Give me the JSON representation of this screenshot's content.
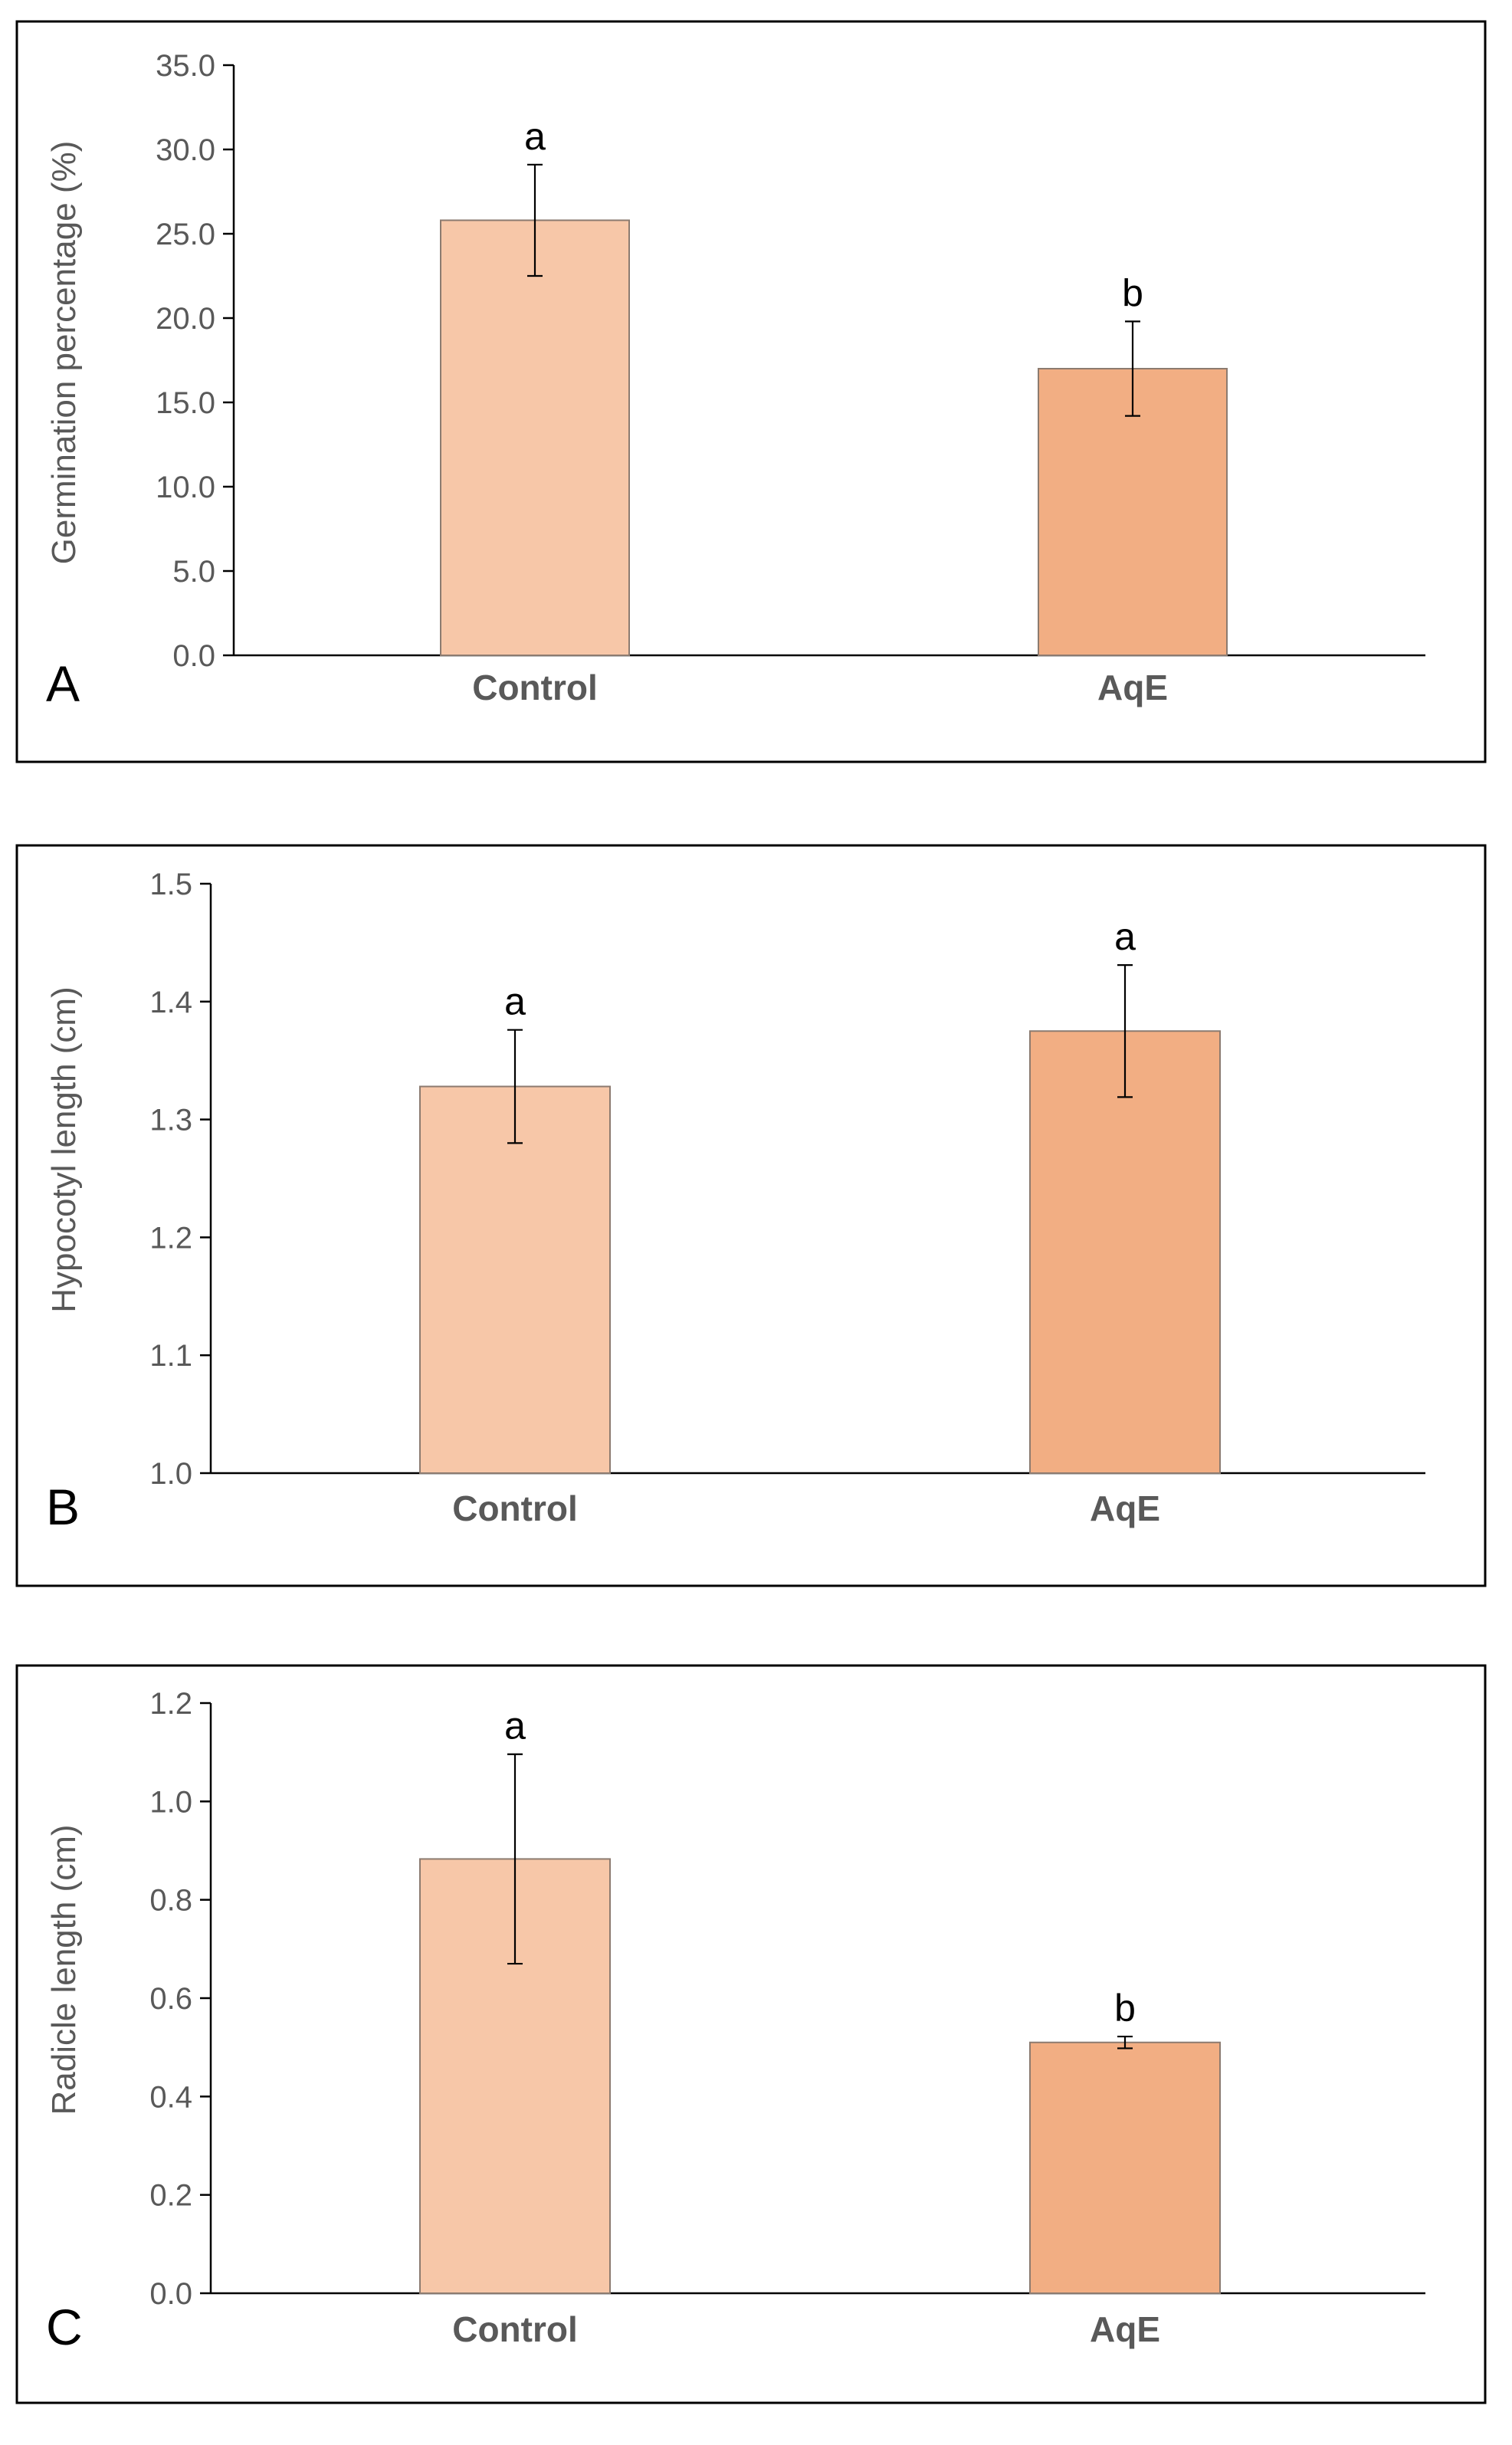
{
  "chart_data": [
    {
      "type": "bar",
      "panel_label": "A",
      "categories": [
        "Control",
        "AqE"
      ],
      "values": [
        25.8,
        17.0
      ],
      "errors": [
        3.3,
        2.8
      ],
      "significance": [
        "a",
        "b"
      ],
      "ylabel": "Germination percentage (%)",
      "xlabel": "",
      "ylim": [
        0,
        35
      ],
      "yticks": [
        0,
        5,
        10,
        15,
        20,
        25,
        30,
        35
      ],
      "ytick_labels": [
        "0.0",
        "5.0",
        "10.0",
        "15.0",
        "20.0",
        "25.0",
        "30.0",
        "35.0"
      ]
    },
    {
      "type": "bar",
      "panel_label": "B",
      "categories": [
        "Control",
        "AqE"
      ],
      "values": [
        1.328,
        1.375
      ],
      "errors": [
        0.048,
        0.056
      ],
      "significance": [
        "a",
        "a"
      ],
      "ylabel": "Hypocotyl length (cm)",
      "xlabel": "",
      "ylim": [
        1.0,
        1.5
      ],
      "yticks": [
        1.0,
        1.1,
        1.2,
        1.3,
        1.4,
        1.5
      ],
      "ytick_labels": [
        "1.0",
        "1.1",
        "1.2",
        "1.3",
        "1.4",
        "1.5"
      ]
    },
    {
      "type": "bar",
      "panel_label": "C",
      "categories": [
        "Control",
        "AqE"
      ],
      "values": [
        0.883,
        0.51
      ],
      "errors": [
        0.213,
        0.012
      ],
      "significance": [
        "a",
        "b"
      ],
      "ylabel": "Radicle length (cm)",
      "xlabel": "",
      "ylim": [
        0,
        1.2
      ],
      "yticks": [
        0,
        0.2,
        0.4,
        0.6,
        0.8,
        1.0,
        1.2
      ],
      "ytick_labels": [
        "0.0",
        "0.2",
        "0.4",
        "0.6",
        "0.8",
        "1.0",
        "1.2"
      ]
    }
  ],
  "colors": {
    "bar_control": "#F7C7A8",
    "bar_aqe": "#F2AE83",
    "bar_edge": "#8C7B70",
    "axis": "#000000",
    "tick_text": "#595959",
    "frame": "#000000",
    "error_bar": "#000000"
  }
}
